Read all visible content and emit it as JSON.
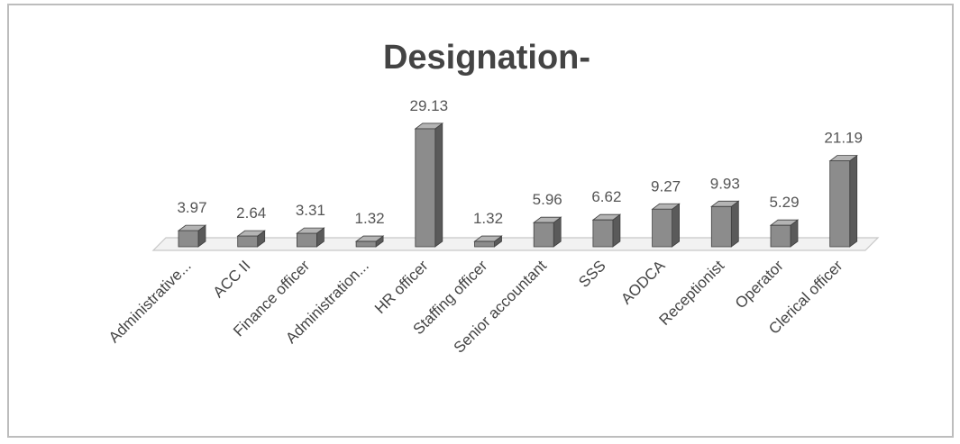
{
  "chart_data": {
    "type": "bar",
    "title": "Designation-",
    "xlabel": "",
    "ylabel": "",
    "categories": [
      "Administrative...",
      "ACC II",
      "Finance officer",
      "Administration...",
      "HR officer",
      "Staffing officer",
      "Senior accountant",
      "SSS",
      "AODCA",
      "Receptionist",
      "Operator",
      "Clerical officer"
    ],
    "values": [
      3.97,
      2.64,
      3.31,
      1.32,
      29.13,
      1.32,
      5.96,
      6.62,
      9.27,
      9.93,
      5.29,
      21.19
    ],
    "value_labels": [
      "3.97",
      "2.64",
      "3.31",
      "1.32",
      "29.13",
      "1.32",
      "5.96",
      "6.62",
      "9.27",
      "9.93",
      "5.29",
      "21.19"
    ],
    "ylim": [
      0,
      30
    ],
    "grid": false,
    "legend": "none",
    "style": "3d-column",
    "colors": {
      "bar_front": "#8c8c8c",
      "bar_side": "#5a5a5a",
      "bar_top": "#b4b4b4",
      "floor": "#f2f2f2",
      "floor_edge": "#c8c8c8"
    }
  }
}
